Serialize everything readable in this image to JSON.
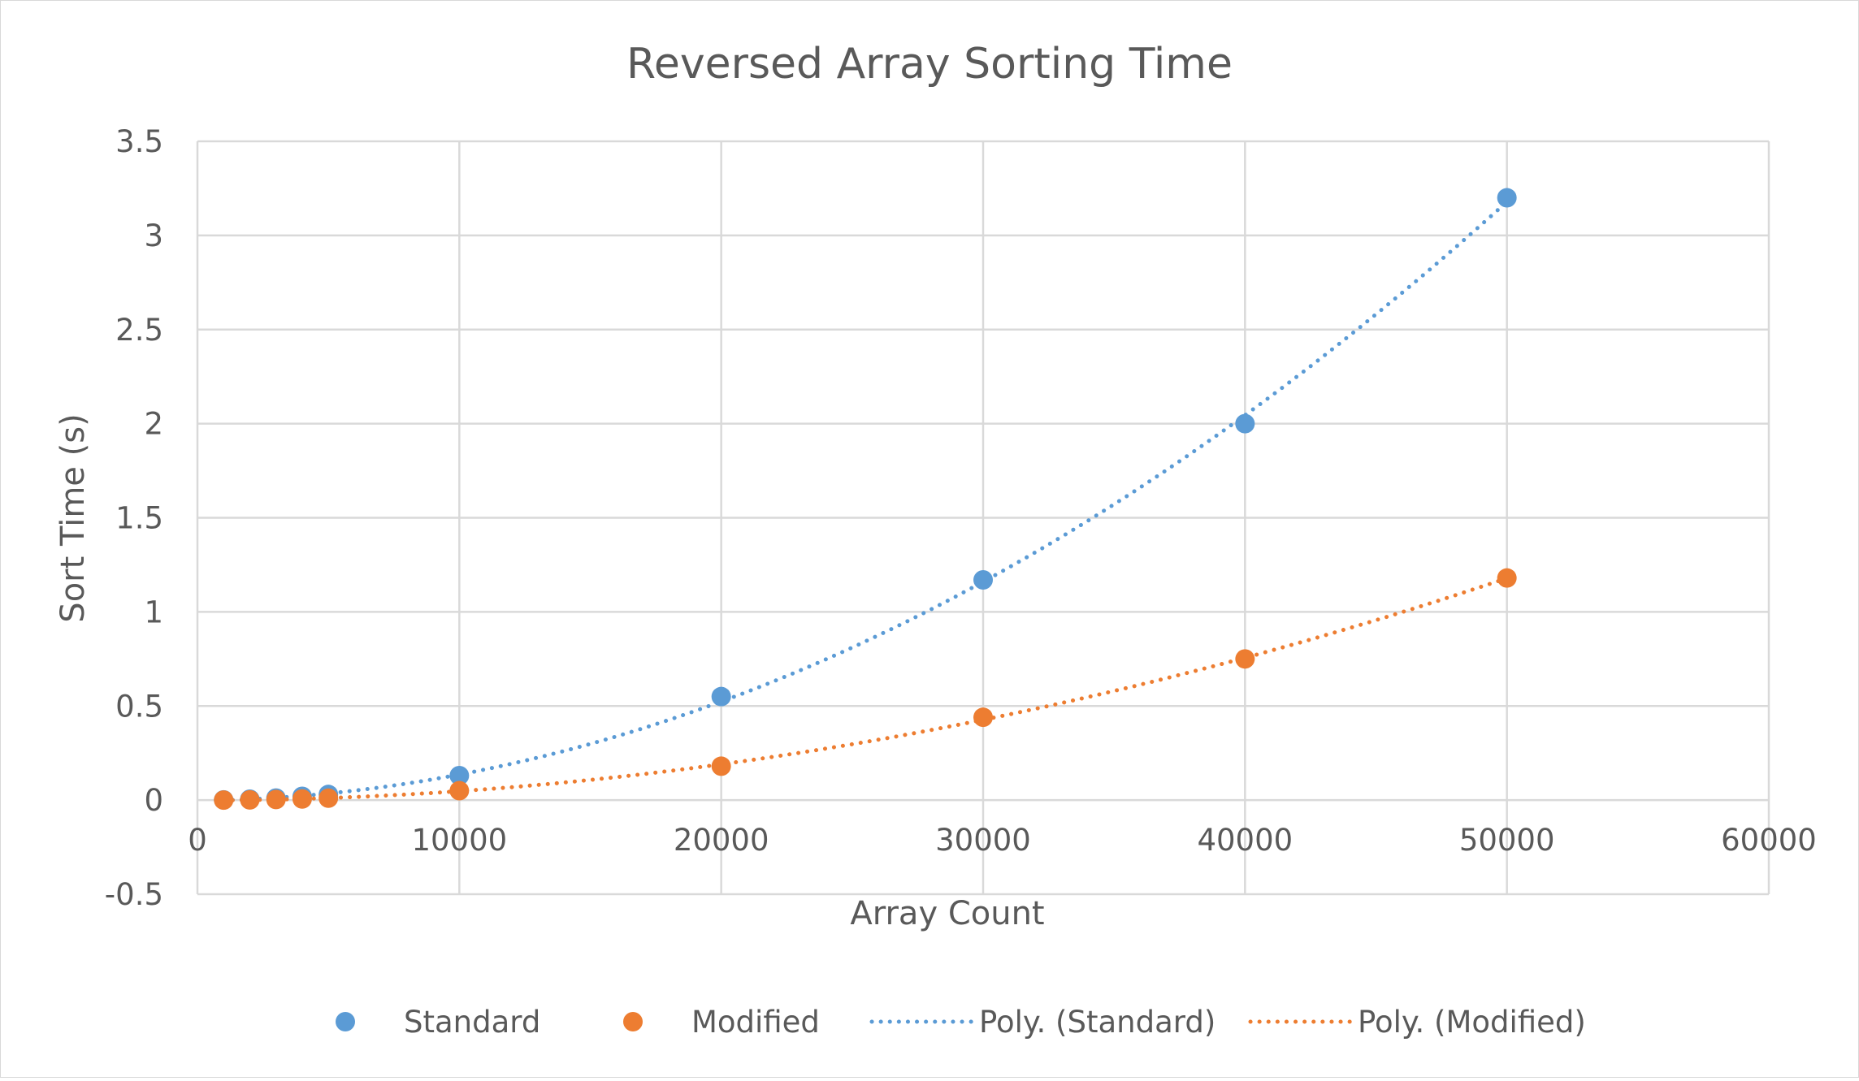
{
  "chart_data": {
    "type": "scatter",
    "title": "Reversed Array Sorting Time",
    "xlabel": "Array Count",
    "ylabel": "Sort Time (s)",
    "xlim": [
      0,
      60000
    ],
    "ylim": [
      -0.5,
      3.5
    ],
    "x_ticks": [
      0,
      10000,
      20000,
      30000,
      40000,
      50000,
      60000
    ],
    "y_ticks": [
      -0.5,
      0,
      0.5,
      1,
      1.5,
      2,
      2.5,
      3,
      3.5
    ],
    "x_tick_labels": [
      "0",
      "10000",
      "20000",
      "30000",
      "40000",
      "50000",
      "60000"
    ],
    "y_tick_labels": [
      "-0.5",
      "0",
      "0.5",
      "1",
      "1.5",
      "2",
      "2.5",
      "3",
      "3.5"
    ],
    "grid": true,
    "legend_position": "bottom",
    "x": [
      1000,
      2000,
      3000,
      4000,
      5000,
      10000,
      20000,
      30000,
      40000,
      50000
    ],
    "series": [
      {
        "name": "Standard",
        "color": "#5b9bd5",
        "values": [
          0.001,
          0.005,
          0.011,
          0.02,
          0.03,
          0.13,
          0.55,
          1.17,
          2.0,
          3.2
        ]
      },
      {
        "name": "Modified",
        "color": "#ed7d31",
        "values": [
          0.0,
          0.001,
          0.003,
          0.006,
          0.01,
          0.05,
          0.18,
          0.44,
          0.75,
          1.18
        ]
      }
    ],
    "trendlines": [
      {
        "name": "Poly. (Standard)",
        "color": "#5b9bd5",
        "style": "dotted",
        "order": 2,
        "of_series": "Standard"
      },
      {
        "name": "Poly. (Modified)",
        "color": "#ed7d31",
        "style": "dotted",
        "order": 2,
        "of_series": "Modified"
      }
    ]
  }
}
